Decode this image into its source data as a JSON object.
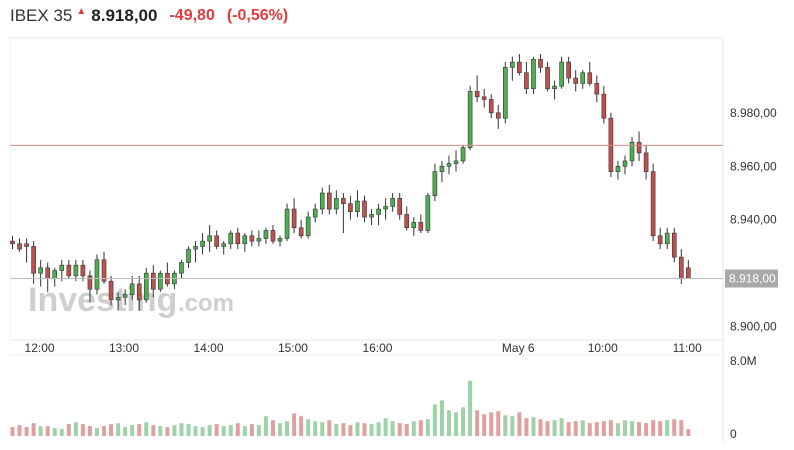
{
  "header": {
    "symbol": "IBEX 35",
    "last_price": "8.918,00",
    "change": "-49,80",
    "change_pct": "(-0,56%)",
    "change_direction_icon": "red-up-arrow-icon",
    "negative_color": "#e23b3b"
  },
  "watermark": {
    "brand": "Investing",
    "suffix": ".com"
  },
  "chart_data": {
    "type": "candlestick",
    "y_ticks": [
      "8.980,00",
      "8.960,00",
      "8.940,00",
      "8.900,00"
    ],
    "y_tick_values": [
      8980,
      8960,
      8940,
      8900
    ],
    "y_range": [
      8895,
      9008
    ],
    "x_ticks": [
      "12:00",
      "13:00",
      "14:00",
      "15:00",
      "16:00",
      "May 6",
      "10:00",
      "11:00"
    ],
    "x_tick_index": [
      1,
      13,
      25,
      37,
      49,
      69,
      81,
      93
    ],
    "reference_line_value": 8967.8,
    "last_price_line_value": 8918.0,
    "last_price_label": "8.918,00",
    "volume_axis_labels": [
      "8.0M",
      "0"
    ],
    "volume_max": 8.0,
    "up_color": "#4caf50",
    "down_color": "#c0504d",
    "volume_up_color": "#9ed3a8",
    "volume_down_color": "#e0a0a0",
    "candles": [
      [
        8932,
        8934,
        8929,
        8931
      ],
      [
        8931,
        8933,
        8928,
        8929
      ],
      [
        8931,
        8933,
        8924,
        8930
      ],
      [
        8930,
        8932,
        8916,
        8920
      ],
      [
        8920,
        8925,
        8915,
        8922
      ],
      [
        8922,
        8924,
        8913,
        8918
      ],
      [
        8918,
        8922,
        8915,
        8921
      ],
      [
        8921,
        8925,
        8917,
        8923
      ],
      [
        8923,
        8925,
        8918,
        8919
      ],
      [
        8919,
        8925,
        8917,
        8923
      ],
      [
        8923,
        8925,
        8917,
        8919
      ],
      [
        8919,
        8921,
        8909,
        8914
      ],
      [
        8914,
        8927,
        8912,
        8925
      ],
      [
        8925,
        8928,
        8916,
        8917
      ],
      [
        8917,
        8919,
        8908,
        8910
      ],
      [
        8910,
        8913,
        8906,
        8911
      ],
      [
        8911,
        8914,
        8908,
        8912
      ],
      [
        8912,
        8919,
        8910,
        8916
      ],
      [
        8916,
        8919,
        8906,
        8910
      ],
      [
        8910,
        8922,
        8909,
        8920
      ],
      [
        8920,
        8923,
        8911,
        8914
      ],
      [
        8914,
        8921,
        8913,
        8920
      ],
      [
        8920,
        8924,
        8915,
        8916
      ],
      [
        8916,
        8921,
        8914,
        8920
      ],
      [
        8920,
        8925,
        8918,
        8924
      ],
      [
        8924,
        8930,
        8922,
        8929
      ],
      [
        8929,
        8932,
        8924,
        8930
      ],
      [
        8930,
        8935,
        8927,
        8932
      ],
      [
        8932,
        8938,
        8928,
        8934
      ],
      [
        8934,
        8936,
        8929,
        8930
      ],
      [
        8930,
        8932,
        8927,
        8931
      ],
      [
        8931,
        8936,
        8929,
        8935
      ],
      [
        8935,
        8937,
        8929,
        8931
      ],
      [
        8931,
        8935,
        8928,
        8934
      ],
      [
        8934,
        8936,
        8930,
        8932
      ],
      [
        8932,
        8936,
        8930,
        8933
      ],
      [
        8933,
        8937,
        8931,
        8936
      ],
      [
        8936,
        8938,
        8931,
        8932
      ],
      [
        8932,
        8934,
        8930,
        8933
      ],
      [
        8933,
        8946,
        8932,
        8944
      ],
      [
        8944,
        8948,
        8935,
        8937
      ],
      [
        8937,
        8940,
        8933,
        8934
      ],
      [
        8934,
        8943,
        8933,
        8941
      ],
      [
        8941,
        8946,
        8939,
        8944
      ],
      [
        8944,
        8952,
        8942,
        8950
      ],
      [
        8950,
        8953,
        8942,
        8944
      ],
      [
        8944,
        8951,
        8942,
        8948
      ],
      [
        8948,
        8950,
        8935,
        8946
      ],
      [
        8946,
        8949,
        8940,
        8943
      ],
      [
        8943,
        8951,
        8941,
        8947
      ],
      [
        8947,
        8949,
        8939,
        8941
      ],
      [
        8941,
        8944,
        8938,
        8942
      ],
      [
        8942,
        8946,
        8938,
        8944
      ],
      [
        8944,
        8948,
        8940,
        8945
      ],
      [
        8945,
        8950,
        8943,
        8948
      ],
      [
        8948,
        8950,
        8940,
        8942
      ],
      [
        8942,
        8945,
        8936,
        8937
      ],
      [
        8937,
        8941,
        8934,
        8939
      ],
      [
        8939,
        8942,
        8935,
        8936
      ],
      [
        8936,
        8950,
        8935,
        8949
      ],
      [
        8949,
        8961,
        8947,
        8958
      ],
      [
        8958,
        8962,
        8954,
        8960
      ],
      [
        8960,
        8964,
        8957,
        8961
      ],
      [
        8961,
        8966,
        8958,
        8962
      ],
      [
        8962,
        8968,
        8961,
        8967
      ],
      [
        8967,
        8990,
        8966,
        8988
      ],
      [
        8988,
        8994,
        8984,
        8986
      ],
      [
        8986,
        8989,
        8982,
        8985
      ],
      [
        8985,
        8987,
        8978,
        8980
      ],
      [
        8980,
        8983,
        8974,
        8978
      ],
      [
        8978,
        8999,
        8976,
        8997
      ],
      [
        8997,
        9001,
        8992,
        8999
      ],
      [
        8999,
        9002,
        8994,
        8995
      ],
      [
        8995,
        8999,
        8987,
        8989
      ],
      [
        8989,
        9001,
        8987,
        9000
      ],
      [
        9000,
        9002,
        8995,
        8997
      ],
      [
        8997,
        8999,
        8988,
        8989
      ],
      [
        8989,
        8992,
        8985,
        8990
      ],
      [
        8990,
        9001,
        8989,
        8999
      ],
      [
        8999,
        9001,
        8991,
        8993
      ],
      [
        8993,
        8996,
        8988,
        8991
      ],
      [
        8991,
        8996,
        8989,
        8995
      ],
      [
        8995,
        8999,
        8990,
        8991
      ],
      [
        8991,
        8994,
        8984,
        8987
      ],
      [
        8987,
        8990,
        8976,
        8978
      ],
      [
        8978,
        8980,
        8956,
        8958
      ],
      [
        8958,
        8962,
        8955,
        8960
      ],
      [
        8960,
        8964,
        8957,
        8962
      ],
      [
        8962,
        8971,
        8960,
        8969
      ],
      [
        8969,
        8973,
        8962,
        8965
      ],
      [
        8965,
        8968,
        8955,
        8958
      ],
      [
        8958,
        8961,
        8932,
        8934
      ],
      [
        8934,
        8937,
        8929,
        8931
      ],
      [
        8931,
        8937,
        8929,
        8935
      ],
      [
        8935,
        8937,
        8924,
        8926
      ],
      [
        8926,
        8929,
        8916,
        8918
      ],
      [
        8922,
        8925,
        8918,
        8918
      ]
    ],
    "volumes": [
      0.9,
      1.1,
      0.9,
      1.3,
      1.0,
      1.0,
      0.8,
      0.7,
      1.2,
      1.4,
      1.2,
      1.0,
      0.8,
      1.0,
      1.2,
      1.3,
      0.9,
      1.1,
      1.2,
      1.4,
      1.1,
      1.0,
      0.9,
      1.1,
      1.3,
      1.2,
      1.0,
      0.9,
      1.1,
      1.2,
      1.0,
      1.1,
      1.3,
      1.0,
      1.2,
      1.1,
      2.0,
      1.6,
      1.3,
      1.5,
      2.3,
      2.0,
      1.7,
      1.5,
      1.4,
      1.6,
      1.2,
      1.3,
      1.1,
      1.4,
      1.3,
      1.2,
      1.4,
      1.8,
      1.5,
      1.3,
      1.2,
      1.5,
      1.6,
      1.7,
      3.2,
      3.6,
      2.6,
      2.4,
      2.9,
      5.6,
      2.6,
      2.2,
      2.4,
      2.5,
      2.1,
      2.0,
      2.4,
      1.8,
      1.9,
      1.7,
      1.5,
      1.6,
      1.8,
      1.4,
      1.5,
      1.6,
      1.3,
      1.4,
      1.5,
      1.6,
      1.3,
      1.6,
      1.5,
      1.4,
      1.3,
      1.6,
      1.5,
      1.6,
      1.7,
      1.6,
      0.7
    ]
  }
}
